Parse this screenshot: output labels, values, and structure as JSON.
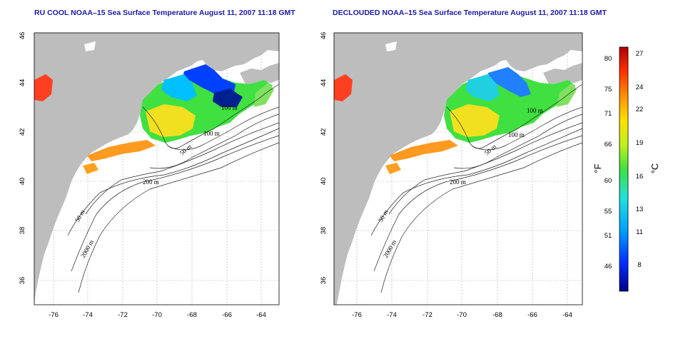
{
  "titles": {
    "left": "RU COOL NOAA–15 Sea Surface Temperature August 11, 2007 11:18 GMT",
    "right": "DECLOUDED NOAA–15 Sea Surface Temperature August 11, 2007 11:18 GMT"
  },
  "axes": {
    "lon_ticks": [
      "-76",
      "-74",
      "-72",
      "-70",
      "-68",
      "-66",
      "-64"
    ],
    "lat_ticks": [
      "36",
      "38",
      "40",
      "42",
      "44",
      "46"
    ]
  },
  "contour_labels": [
    "100 m",
    "100 m",
    "50 m",
    "200 m",
    "50 m",
    "2000 m"
  ],
  "colorbar": {
    "f_ticks": [
      "80",
      "75",
      "71",
      "66",
      "60",
      "55",
      "51",
      "46"
    ],
    "c_ticks": [
      "27",
      "24",
      "22",
      "19",
      "16",
      "13",
      "11",
      "8"
    ],
    "f_unit": "°F",
    "c_unit": "°C",
    "colors": [
      "#00008b",
      "#0030ff",
      "#00a0ff",
      "#20e0e0",
      "#40e040",
      "#c0f020",
      "#ffe000",
      "#ff9000",
      "#ff3000",
      "#b00000"
    ]
  }
}
